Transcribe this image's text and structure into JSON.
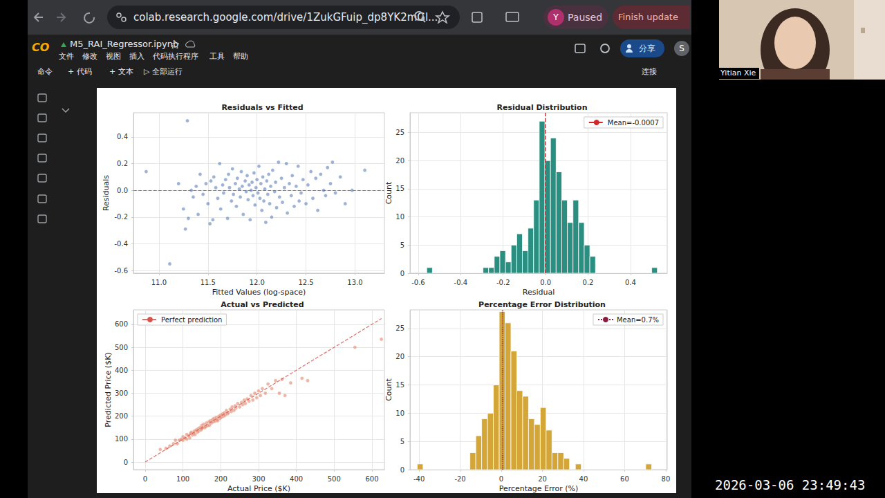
{
  "browser": {
    "url": "colab.research.google.com/drive/1ZukGFuip_dp8YK2mGl...",
    "profile_initial": "Y",
    "profile_status": "Paused",
    "update_button": "Finish update"
  },
  "notebook": {
    "logo": "CO",
    "title": "M5_RAI_Regressor.ipynb",
    "menu": [
      "文件",
      "修改",
      "视图",
      "插入",
      "代码执行程序",
      "工具",
      "帮助"
    ],
    "toolbar": [
      "命令",
      "+ 代码",
      "+ 文本",
      "▷ 全部运行"
    ],
    "connect": "连接",
    "share": "分享",
    "account_initial": "S"
  },
  "webcam": {
    "name": "Yitian Xie"
  },
  "timestamp": "2026-03-06 23:49:43",
  "chart_data": [
    {
      "type": "scatter",
      "title": "Residuals vs Fitted",
      "x_label": "Fitted Values (log-space)",
      "y_label": "Residuals",
      "x": [
        11.2,
        11.25,
        11.3,
        11.33,
        11.35,
        11.38,
        11.4,
        11.42,
        11.45,
        11.48,
        11.5,
        11.52,
        11.53,
        11.55,
        11.56,
        11.58,
        11.6,
        11.62,
        11.63,
        11.65,
        11.66,
        11.68,
        11.7,
        11.71,
        11.72,
        11.74,
        11.75,
        11.76,
        11.78,
        11.79,
        11.8,
        11.82,
        11.83,
        11.84,
        11.85,
        11.86,
        11.88,
        11.89,
        11.9,
        11.91,
        11.92,
        11.93,
        11.94,
        11.95,
        11.96,
        11.97,
        11.98,
        11.99,
        12,
        12.01,
        12.02,
        12.03,
        12.04,
        12.05,
        12.06,
        12.07,
        12.08,
        12.09,
        12.1,
        12.11,
        12.12,
        12.13,
        12.14,
        12.15,
        12.16,
        12.18,
        12.19,
        12.2,
        12.22,
        12.23,
        12.25,
        12.26,
        12.28,
        12.3,
        12.31,
        12.33,
        12.35,
        12.36,
        12.38,
        12.4,
        12.42,
        12.43,
        12.45,
        12.47,
        12.5,
        12.52,
        12.55,
        12.57,
        12.6,
        12.62,
        12.65,
        12.68,
        12.7,
        12.72,
        12.75,
        12.77,
        12.8,
        12.85,
        12.9,
        12.97,
        13.1,
        11.29,
        11.11,
        10.87,
        11.27
      ],
      "y": [
        0.05,
        -0.14,
        -0.21,
        0,
        -0.05,
        0.03,
        -0.18,
        0.12,
        -0.03,
        0.05,
        -0.1,
        -0.25,
        0.07,
        -0.22,
        0.1,
        0.02,
        -0.06,
        0.2,
        -0.14,
        0.04,
        -0.02,
        0.08,
        -0.21,
        0.12,
        0.02,
        -0.08,
        0.16,
        -0.03,
        0.05,
        -0.12,
        0.09,
        0.01,
        -0.05,
        0.14,
        0.03,
        -0.18,
        0.07,
        -0.01,
        0.11,
        -0.07,
        0.04,
        -0.22,
        0,
        0.06,
        -0.04,
        0.13,
        -0.11,
        0.02,
        0.08,
        -0.02,
        0.18,
        -0.06,
        0.05,
        -0.15,
        0.1,
        -0.08,
        0.01,
        -0.24,
        0.07,
        -0.03,
        0.12,
        -0.1,
        0.03,
        -0.2,
        0.15,
        -0.01,
        0.06,
        -0.13,
        0.21,
        -0.05,
        0.09,
        -0.09,
        0.02,
        0.2,
        -0.17,
        0.05,
        -0.04,
        0.11,
        -0.12,
        0.03,
        0.18,
        -0.08,
        -0.02,
        0.08,
        -0.1,
        0.04,
        0.14,
        -0.06,
        0.09,
        -0.15,
        0.12,
        0,
        -0.04,
        0.17,
        0.05,
        0.21,
        -0.02,
        0.1,
        -0.1,
        0,
        0.15,
        0.52,
        -0.55,
        0.14,
        -0.29
      ],
      "color": "#4c72b0",
      "marker": "circle",
      "reference_line": {
        "y": 0,
        "color": "#d9534f",
        "line_style": "dashed"
      },
      "xlim": [
        10.74,
        13.3
      ],
      "ylim": [
        -0.62,
        0.58
      ],
      "xticks": [
        {
          "value": 11,
          "label": "11.0"
        },
        11.5,
        {
          "value": 12,
          "label": "12.0"
        },
        12.5,
        {
          "value": 13,
          "label": "13.0"
        }
      ],
      "yticks": [
        -0.6,
        -0.4,
        -0.2,
        {
          "value": 0,
          "label": "0.0"
        },
        0.2,
        0.4
      ],
      "grid": true
    },
    {
      "type": "histogram",
      "title": "Residual Distribution",
      "x_label": "Residual",
      "y_label": "Count",
      "bins": [
        -0.56,
        -0.5335,
        -0.507,
        -0.4805,
        -0.454,
        -0.4275,
        -0.401,
        -0.3745,
        -0.348,
        -0.3215,
        -0.295,
        -0.2685,
        -0.242,
        -0.2155,
        -0.189,
        -0.1625,
        -0.136,
        -0.1095,
        -0.083,
        -0.0565,
        -0.03,
        -0.0035,
        0.023,
        0.0495,
        0.076,
        0.1025,
        0.129,
        0.1555,
        0.182,
        0.2085,
        0.235,
        0.2615,
        0.288,
        0.3145,
        0.341,
        0.3675,
        0.394,
        0.4205,
        0.447,
        0.4735,
        0.5,
        0.5265
      ],
      "counts": [
        1,
        0,
        0,
        0,
        0,
        0,
        0,
        0,
        0,
        0,
        1,
        1,
        3,
        4,
        2,
        5,
        7,
        4,
        8,
        13,
        27,
        20,
        24,
        18,
        13,
        9,
        13,
        9,
        5,
        3,
        0,
        0,
        0,
        0,
        0,
        0,
        0,
        0,
        0,
        0,
        1
      ],
      "color": "#2a8f80",
      "mean": {
        "value": -0.0007,
        "label": "Mean=-0.0007",
        "color": "#d62728",
        "line_style": "dashed"
      },
      "legend": "upper right",
      "xlim": [
        -0.639,
        0.573
      ],
      "ylim": [
        0,
        28.5
      ],
      "xticks": [
        -0.6,
        -0.4,
        -0.2,
        {
          "value": 0,
          "label": "0.0"
        },
        0.2,
        0.4
      ],
      "yticks": [
        0,
        5,
        10,
        15,
        20,
        25
      ],
      "grid": true
    },
    {
      "type": "scatter",
      "title": "Actual vs Predicted",
      "x_label": "Actual Price ($K)",
      "y_label": "Predicted Price ($K)",
      "x": [
        40,
        55,
        65,
        75,
        80,
        85,
        90,
        95,
        100,
        100,
        105,
        110,
        110,
        115,
        118,
        120,
        122,
        125,
        128,
        130,
        132,
        135,
        138,
        140,
        142,
        145,
        148,
        150,
        150,
        152,
        155,
        158,
        160,
        162,
        165,
        168,
        170,
        172,
        175,
        178,
        180,
        182,
        185,
        188,
        190,
        192,
        195,
        198,
        200,
        202,
        205,
        208,
        210,
        212,
        215,
        218,
        220,
        225,
        228,
        230,
        235,
        238,
        240,
        245,
        250,
        255,
        258,
        262,
        265,
        270,
        275,
        280,
        285,
        290,
        295,
        300,
        305,
        310,
        318,
        325,
        335,
        345,
        355,
        362,
        370,
        385,
        415,
        430,
        555,
        625
      ],
      "y": [
        55,
        60,
        70,
        80,
        95,
        80,
        95,
        100,
        110,
        95,
        105,
        100,
        120,
        115,
        105,
        125,
        130,
        118,
        125,
        135,
        120,
        140,
        130,
        145,
        135,
        150,
        140,
        160,
        145,
        150,
        165,
        150,
        155,
        170,
        158,
        175,
        160,
        180,
        170,
        185,
        175,
        190,
        178,
        195,
        185,
        180,
        200,
        190,
        205,
        195,
        210,
        200,
        215,
        205,
        225,
        210,
        215,
        230,
        220,
        240,
        225,
        245,
        235,
        255,
        240,
        260,
        250,
        270,
        255,
        275,
        265,
        290,
        270,
        300,
        280,
        310,
        290,
        320,
        300,
        340,
        320,
        355,
        300,
        360,
        290,
        345,
        365,
        355,
        500,
        535
      ],
      "color": "#e07a5f",
      "marker": "circle",
      "line": {
        "name": "Perfect prediction",
        "x": [
          0,
          625
        ],
        "y": [
          0,
          625
        ],
        "color": "#d9534f",
        "line_style": "dashed"
      },
      "legend": "upper left",
      "xlim": [
        -31,
        633
      ],
      "ylim": [
        -33,
        663
      ],
      "xticks": [
        0,
        100,
        200,
        300,
        400,
        500,
        600
      ],
      "yticks": [
        0,
        100,
        200,
        300,
        400,
        500,
        600
      ],
      "grid": true
    },
    {
      "type": "histogram",
      "title": "Percentage Error Distribution",
      "x_label": "Percentage Error (%)",
      "y_label": "Count",
      "bins": [
        -40.9,
        -38.05,
        -35.2,
        -32.35,
        -29.5,
        -26.65,
        -23.8,
        -20.95,
        -18.1,
        -15.25,
        -12.4,
        -9.55,
        -6.7,
        -3.85,
        -1,
        1.85,
        4.7,
        7.55,
        10.4,
        13.25,
        16.1,
        18.95,
        21.8,
        24.65,
        27.5,
        30.35,
        33.2,
        36.05,
        38.9,
        41.75,
        44.6,
        47.45,
        50.3,
        53.15,
        56,
        58.85,
        61.7,
        64.55,
        67.4,
        70.25,
        73.1
      ],
      "counts": [
        1,
        0,
        0,
        0,
        0,
        0,
        0,
        0,
        0,
        3,
        6,
        9,
        10,
        15,
        28,
        26,
        21,
        14,
        13,
        9,
        8,
        11,
        7,
        3,
        3,
        2,
        0,
        1,
        0,
        0,
        0,
        0,
        0,
        0,
        0,
        0,
        0,
        0,
        0,
        1
      ],
      "color": "#d4a537",
      "mean": {
        "value": 0.7,
        "label": "Mean=0.7%",
        "color": "#8b1e3f",
        "line_style": "dotted"
      },
      "legend": "upper right",
      "xlim": [
        -44.4,
        80.7
      ],
      "ylim": [
        0,
        28.3
      ],
      "xticks": [
        -40,
        -20,
        0,
        20,
        40,
        60,
        80
      ],
      "yticks": [
        0,
        5,
        10,
        15,
        20,
        25
      ],
      "grid": true
    }
  ]
}
